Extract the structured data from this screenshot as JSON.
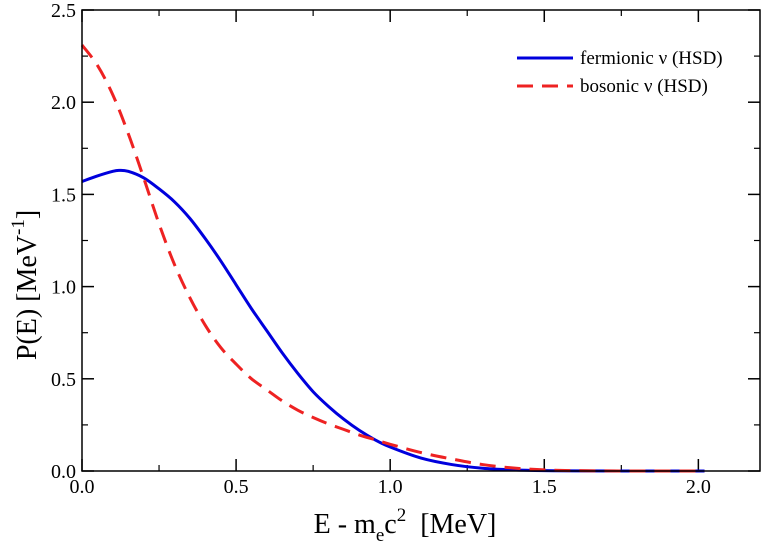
{
  "chart_data": {
    "type": "line",
    "title": "",
    "xlabel": "E - m_e c^2 [MeV]",
    "xlabel_parts": {
      "main": "E - m",
      "sub": "e",
      "c": "c",
      "sup": "2",
      "unit": "[MeV]"
    },
    "ylabel": "P(E) [MeV^-1]",
    "ylabel_parts": {
      "main": "P(E) [MeV",
      "sup": "-1",
      "close": "]"
    },
    "xlim": [
      0.0,
      2.2
    ],
    "ylim": [
      0.0,
      2.5
    ],
    "xticks": [
      0.0,
      0.5,
      1.0,
      1.5,
      2.0
    ],
    "xtick_labels": [
      "0.0",
      "0.5",
      "1.0",
      "1.5",
      "2.0"
    ],
    "yticks": [
      0.0,
      0.5,
      1.0,
      1.5,
      2.0,
      2.5
    ],
    "ytick_labels": [
      "0.0",
      "0.5",
      "1.0",
      "1.5",
      "2.0",
      "2.5"
    ],
    "legend_position": "top-right",
    "series": [
      {
        "name": "fermionic ν (HSD)",
        "style": "solid",
        "color": "#0000dd",
        "x": [
          0.0,
          0.05,
          0.1,
          0.12,
          0.15,
          0.2,
          0.25,
          0.3,
          0.35,
          0.4,
          0.45,
          0.5,
          0.55,
          0.6,
          0.65,
          0.7,
          0.75,
          0.8,
          0.85,
          0.9,
          0.95,
          1.0,
          1.1,
          1.2,
          1.3,
          1.4,
          1.5,
          1.6,
          1.8,
          2.02
        ],
        "values": [
          1.57,
          1.6,
          1.625,
          1.63,
          1.625,
          1.59,
          1.53,
          1.46,
          1.37,
          1.26,
          1.14,
          1.01,
          0.88,
          0.76,
          0.64,
          0.53,
          0.43,
          0.35,
          0.28,
          0.22,
          0.17,
          0.13,
          0.07,
          0.035,
          0.015,
          0.006,
          0.002,
          0.0005,
          0.0,
          0.0
        ]
      },
      {
        "name": "bosonic ν (HSD)",
        "style": "dashed",
        "color": "#ee2222",
        "x": [
          0.0,
          0.05,
          0.1,
          0.15,
          0.2,
          0.25,
          0.3,
          0.35,
          0.4,
          0.45,
          0.5,
          0.55,
          0.6,
          0.65,
          0.7,
          0.75,
          0.8,
          0.85,
          0.9,
          0.95,
          1.0,
          1.1,
          1.2,
          1.3,
          1.4,
          1.5,
          1.6,
          1.8,
          2.02
        ],
        "values": [
          2.31,
          2.2,
          2.04,
          1.83,
          1.59,
          1.34,
          1.12,
          0.94,
          0.79,
          0.67,
          0.58,
          0.5,
          0.44,
          0.38,
          0.33,
          0.29,
          0.255,
          0.225,
          0.195,
          0.17,
          0.145,
          0.1,
          0.065,
          0.035,
          0.016,
          0.006,
          0.002,
          0.0,
          0.0
        ]
      }
    ]
  }
}
